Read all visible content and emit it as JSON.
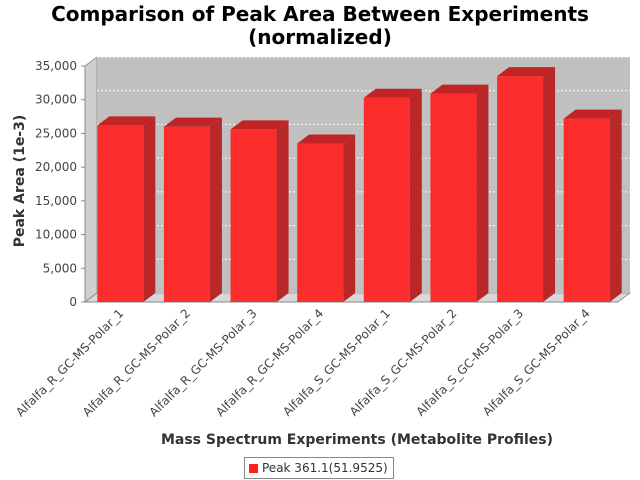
{
  "chart_data": {
    "type": "bar",
    "title": "Comparison of Peak Area Between Experiments\n(normalized)",
    "xlabel": "Mass Spectrum Experiments (Metabolite Profiles)",
    "ylabel": "Peak Area (1e-3)",
    "categories": [
      "Alfalfa_R_GC-MS-Polar_1",
      "Alfalfa_R_GC-MS-Polar_2",
      "Alfalfa_R_GC-MS-Polar_3",
      "Alfalfa_R_GC-MS-Polar_4",
      "Alfalfa_S_GC-MS-Polar_1",
      "Alfalfa_S_GC-MS-Polar_2",
      "Alfalfa_S_GC-MS-Polar_3",
      "Alfalfa_S_GC-MS-Polar_4"
    ],
    "series": [
      {
        "name": "Peak 361.1(51.9525)",
        "color": "#ff2020",
        "values": [
          26200,
          26000,
          25600,
          23500,
          30300,
          30900,
          33500,
          27200
        ]
      }
    ],
    "ylim": [
      0,
      35000
    ],
    "yticks": [
      0,
      5000,
      10000,
      15000,
      20000,
      25000,
      30000,
      35000
    ],
    "ytick_labels": [
      "0",
      "5,000",
      "10,000",
      "15,000",
      "20,000",
      "25,000",
      "30,000",
      "35,000"
    ],
    "grid": true,
    "legend_position": "bottom-center",
    "style": "3d-bar"
  }
}
